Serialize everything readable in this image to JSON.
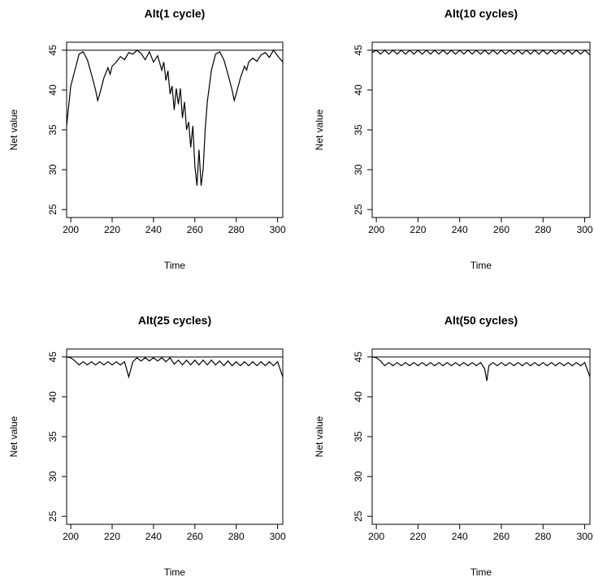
{
  "chart_data": [
    {
      "type": "line",
      "title": "Alt(1 cycle)",
      "xlabel": "Time",
      "ylabel": "Net value",
      "color": "#000000",
      "xlim": [
        198,
        302.5
      ],
      "ylim": [
        24,
        46
      ],
      "xticks": [
        200,
        220,
        240,
        260,
        280,
        300
      ],
      "yticks": [
        25,
        30,
        35,
        40,
        45
      ],
      "hline": 45,
      "x": [
        198,
        200,
        202,
        204,
        206,
        208,
        210,
        212,
        213,
        214,
        216,
        218,
        219,
        220,
        222,
        224,
        226,
        228,
        230,
        232,
        234,
        236,
        238,
        240,
        242,
        244,
        245,
        246,
        247,
        248,
        249,
        250,
        251,
        252,
        253,
        254,
        255,
        256,
        257,
        258,
        259,
        260,
        261,
        262,
        263,
        264,
        265,
        266,
        268,
        270,
        272,
        274,
        276,
        278,
        279,
        280,
        282,
        284,
        285,
        286,
        288,
        290,
        292,
        294,
        296,
        298,
        300,
        302.5
      ],
      "values": [
        35.5,
        40.5,
        42.5,
        44.5,
        44.8,
        43.8,
        42,
        40,
        38.7,
        39.5,
        41.5,
        42.8,
        42,
        43,
        43.5,
        44.2,
        43.8,
        44.7,
        44.5,
        45,
        44.6,
        43.8,
        44.8,
        43.5,
        44.3,
        42.5,
        43.5,
        41.2,
        42.4,
        39.5,
        40.5,
        37.5,
        40.2,
        38.2,
        40.2,
        36.5,
        38.5,
        35,
        36,
        32.8,
        35.5,
        30.5,
        28,
        32.5,
        28,
        30,
        35,
        38.5,
        42.5,
        44.5,
        44.8,
        43.8,
        42,
        40,
        38.7,
        39.5,
        41.5,
        43,
        42.5,
        43.5,
        44,
        43.6,
        44.4,
        44.7,
        44.1,
        45,
        44.3,
        43.5
      ]
    },
    {
      "type": "line",
      "title": "Alt(10 cycles)",
      "xlabel": "Time",
      "ylabel": "Net value",
      "color": "#000000",
      "xlim": [
        198,
        302.5
      ],
      "ylim": [
        24,
        46
      ],
      "xticks": [
        200,
        220,
        240,
        260,
        280,
        300
      ],
      "yticks": [
        25,
        30,
        35,
        40,
        45
      ],
      "hline": 45,
      "x": [
        198,
        200,
        202,
        204,
        206,
        208,
        210,
        212,
        214,
        216,
        218,
        220,
        222,
        224,
        226,
        228,
        230,
        232,
        234,
        236,
        238,
        240,
        242,
        244,
        246,
        248,
        250,
        252,
        254,
        256,
        258,
        260,
        262,
        264,
        266,
        268,
        270,
        272,
        274,
        276,
        278,
        280,
        282,
        284,
        286,
        288,
        290,
        292,
        294,
        296,
        298,
        300,
        302.5
      ],
      "values": [
        44.7,
        45,
        44.5,
        45,
        44.5,
        45,
        44.5,
        45,
        44.5,
        45,
        44.5,
        45,
        44.5,
        45,
        44.5,
        45,
        44.5,
        45,
        44.5,
        45,
        44.5,
        45,
        44.5,
        45,
        44.5,
        45,
        44.5,
        45,
        44.5,
        45,
        44.5,
        45,
        44.5,
        45,
        44.5,
        45,
        44.5,
        45,
        44.5,
        45,
        44.5,
        45,
        44.5,
        45,
        44.5,
        45,
        44.5,
        45,
        44.5,
        45,
        44.5,
        45,
        44.4
      ]
    },
    {
      "type": "line",
      "title": "Alt(25 cycles)",
      "xlabel": "Time",
      "ylabel": "Net value",
      "color": "#000000",
      "xlim": [
        198,
        302.5
      ],
      "ylim": [
        24,
        46
      ],
      "xticks": [
        200,
        220,
        240,
        260,
        280,
        300
      ],
      "yticks": [
        25,
        30,
        35,
        40,
        45
      ],
      "hline": 45,
      "x": [
        198,
        200,
        202,
        204,
        206,
        208,
        210,
        212,
        214,
        216,
        218,
        220,
        222,
        224,
        226,
        228,
        230,
        232,
        234,
        236,
        238,
        240,
        242,
        244,
        246,
        248,
        250,
        252,
        254,
        256,
        258,
        260,
        262,
        264,
        266,
        268,
        270,
        272,
        274,
        276,
        278,
        280,
        282,
        284,
        286,
        288,
        290,
        292,
        294,
        296,
        298,
        300,
        302.5
      ],
      "values": [
        45,
        44.9,
        44.5,
        44,
        44.4,
        44,
        44.4,
        44,
        44.4,
        44,
        44.4,
        44,
        44.4,
        44,
        44.4,
        42.5,
        44.4,
        44.9,
        44.5,
        44.9,
        44.5,
        44.9,
        44.5,
        44.9,
        44.4,
        44.9,
        44.1,
        44.6,
        44,
        44.6,
        44,
        44.6,
        44,
        44.6,
        44,
        44.6,
        44,
        44.5,
        43.9,
        44.5,
        43.9,
        44.4,
        43.9,
        44.4,
        43.9,
        44.4,
        43.9,
        44.4,
        43.9,
        44.4,
        43.9,
        44.4,
        42.5
      ]
    },
    {
      "type": "line",
      "title": "Alt(50 cycles)",
      "xlabel": "Time",
      "ylabel": "Net value",
      "color": "#000000",
      "xlim": [
        198,
        302.5
      ],
      "ylim": [
        24,
        46
      ],
      "xticks": [
        200,
        220,
        240,
        260,
        280,
        300
      ],
      "yticks": [
        25,
        30,
        35,
        40,
        45
      ],
      "hline": 45,
      "x": [
        198,
        200,
        202,
        204,
        206,
        208,
        210,
        212,
        214,
        216,
        218,
        220,
        222,
        224,
        226,
        228,
        230,
        232,
        234,
        236,
        238,
        240,
        242,
        244,
        246,
        248,
        250,
        252,
        253,
        254,
        256,
        258,
        260,
        262,
        264,
        266,
        268,
        270,
        272,
        274,
        276,
        278,
        280,
        282,
        284,
        286,
        288,
        290,
        292,
        294,
        296,
        298,
        300,
        302.5
      ],
      "values": [
        45,
        44.9,
        44.5,
        43.9,
        44.3,
        43.9,
        44.3,
        43.9,
        44.3,
        43.9,
        44.3,
        43.9,
        44.3,
        43.9,
        44.3,
        43.9,
        44.3,
        43.9,
        44.3,
        43.9,
        44.3,
        43.9,
        44.3,
        43.9,
        44.3,
        43.9,
        44.3,
        43.5,
        42,
        43.9,
        44.3,
        43.9,
        44.3,
        43.9,
        44.3,
        43.9,
        44.3,
        43.9,
        44.3,
        43.9,
        44.3,
        43.9,
        44.3,
        43.9,
        44.3,
        43.9,
        44.3,
        43.9,
        44.3,
        43.9,
        44.3,
        43.9,
        44.3,
        42.5
      ]
    }
  ]
}
